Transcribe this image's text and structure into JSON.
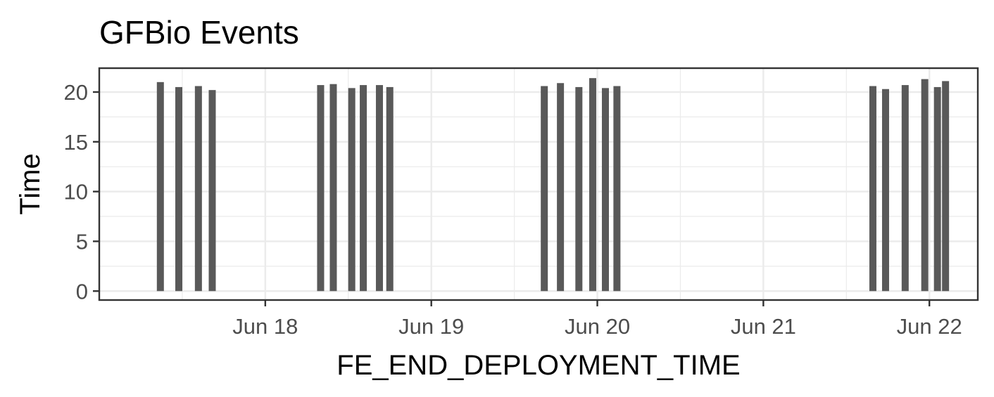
{
  "chart_data": {
    "type": "bar",
    "title": "GFBio Events",
    "xlabel": "FE_END_DEPLOYMENT_TIME",
    "ylabel": "Time",
    "x_axis": "date",
    "xlim": [
      "2014-06-17T00:00",
      "2014-06-22T07:00"
    ],
    "ylim": [
      -0.9,
      22.4
    ],
    "x_ticks": [
      {
        "value": "2014-06-18T00:00",
        "label": "Jun 18"
      },
      {
        "value": "2014-06-19T00:00",
        "label": "Jun 19"
      },
      {
        "value": "2014-06-20T00:00",
        "label": "Jun 20"
      },
      {
        "value": "2014-06-21T00:00",
        "label": "Jun 21"
      },
      {
        "value": "2014-06-22T00:00",
        "label": "Jun 22"
      }
    ],
    "y_ticks": [
      0,
      5,
      10,
      15,
      20
    ],
    "grid": true,
    "bar_color": "#595959",
    "points": [
      {
        "x": "2014-06-17T08:50",
        "y": 21.0
      },
      {
        "x": "2014-06-17T11:30",
        "y": 20.5
      },
      {
        "x": "2014-06-17T14:20",
        "y": 20.6
      },
      {
        "x": "2014-06-17T16:20",
        "y": 20.2
      },
      {
        "x": "2014-06-18T08:00",
        "y": 20.7
      },
      {
        "x": "2014-06-18T09:50",
        "y": 20.8
      },
      {
        "x": "2014-06-18T12:30",
        "y": 20.4
      },
      {
        "x": "2014-06-18T14:10",
        "y": 20.7
      },
      {
        "x": "2014-06-18T16:30",
        "y": 20.7
      },
      {
        "x": "2014-06-18T18:00",
        "y": 20.5
      },
      {
        "x": "2014-06-19T16:20",
        "y": 20.6
      },
      {
        "x": "2014-06-19T18:40",
        "y": 20.9
      },
      {
        "x": "2014-06-19T21:20",
        "y": 20.5
      },
      {
        "x": "2014-06-19T23:20",
        "y": 21.4
      },
      {
        "x": "2014-06-20T01:10",
        "y": 20.4
      },
      {
        "x": "2014-06-20T02:50",
        "y": 20.6
      },
      {
        "x": "2014-06-21T15:50",
        "y": 20.6
      },
      {
        "x": "2014-06-21T17:40",
        "y": 20.3
      },
      {
        "x": "2014-06-21T20:30",
        "y": 20.7
      },
      {
        "x": "2014-06-21T23:20",
        "y": 21.3
      },
      {
        "x": "2014-06-22T01:10",
        "y": 20.5
      },
      {
        "x": "2014-06-22T02:20",
        "y": 21.1
      }
    ]
  }
}
